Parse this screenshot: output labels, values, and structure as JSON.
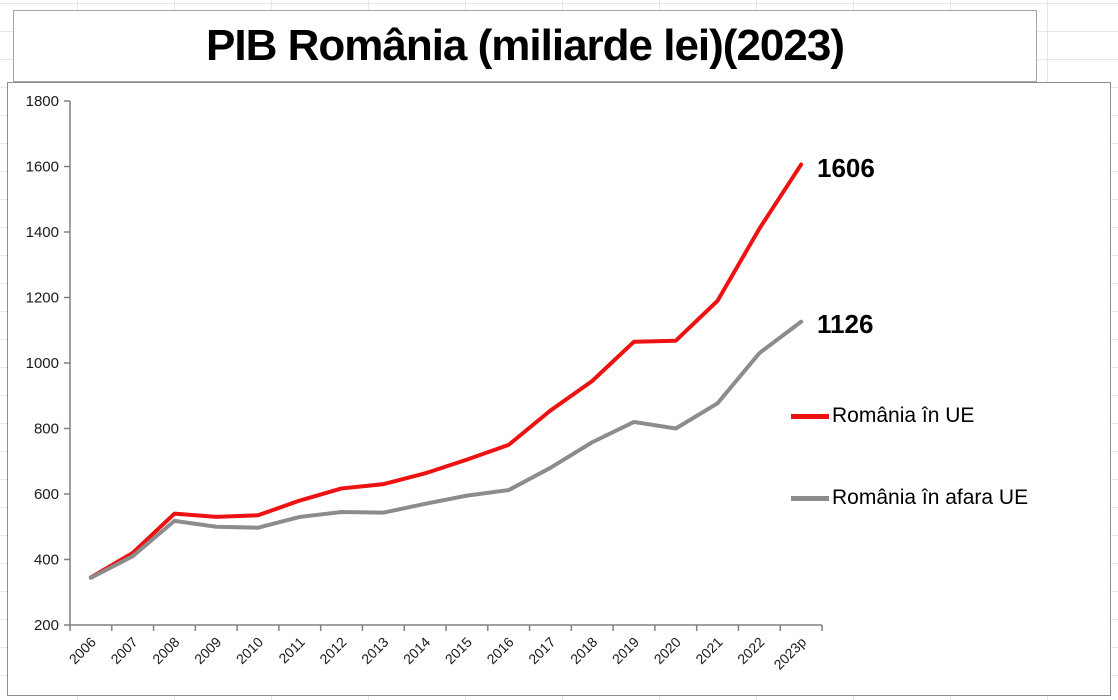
{
  "title": "PIB România (miliarde lei)(2023)",
  "chart_data": {
    "type": "line",
    "title": "PIB România (miliarde lei)(2023)",
    "xlabel": "",
    "ylabel": "",
    "categories": [
      "2006",
      "2007",
      "2008",
      "2009",
      "2010",
      "2011",
      "2012",
      "2013",
      "2014",
      "2015",
      "2016",
      "2017",
      "2018",
      "2019",
      "2020",
      "2021",
      "2022",
      "2023p"
    ],
    "series": [
      {
        "name": "România în UE",
        "color": "#ee1111",
        "values": [
          345,
          420,
          540,
          530,
          535,
          580,
          617,
          630,
          663,
          705,
          750,
          855,
          945,
          1065,
          1068,
          1190,
          1410,
          1606
        ],
        "end_label": "1606"
      },
      {
        "name": "România în afara UE",
        "color": "#8c8c8c",
        "values": [
          344,
          410,
          518,
          500,
          497,
          530,
          545,
          543,
          570,
          595,
          612,
          680,
          758,
          820,
          800,
          877,
          1030,
          1126
        ],
        "end_label": "1126"
      }
    ],
    "ylim": [
      200,
      1800
    ],
    "yticks": [
      200,
      400,
      600,
      800,
      1000,
      1200,
      1400,
      1600,
      1800
    ],
    "grid": false,
    "legend_position": "right-middle"
  }
}
